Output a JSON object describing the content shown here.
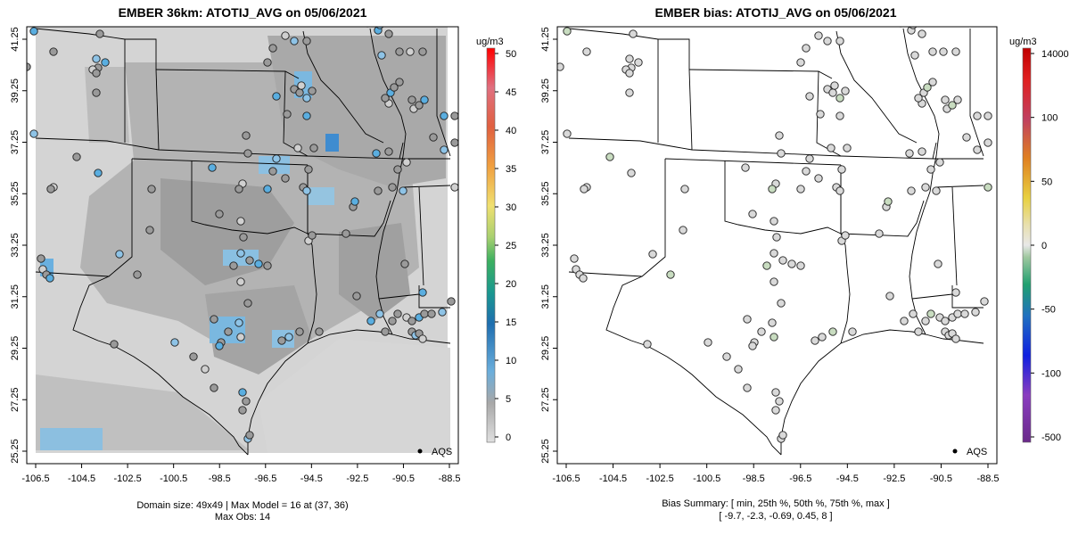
{
  "left_panel": {
    "title": "EMBER 36km: ATOTIJ_AVG on 05/06/2021",
    "colorbar_unit": "ug/m3",
    "colorbar_ticks": [
      "50",
      "45",
      "40",
      "35",
      "30",
      "25",
      "20",
      "15",
      "10",
      "5",
      "0"
    ],
    "legend_label": "AQS",
    "caption_line1": "Domain size: 49x49 | Max Model = 16 at (37, 36)",
    "caption_line2": "Max Obs: 14"
  },
  "right_panel": {
    "title": "EMBER bias: ATOTIJ_AVG on 05/06/2021",
    "colorbar_unit": "ug/m3",
    "colorbar_ticks": [
      "14000",
      "100",
      "50",
      "0",
      "-50",
      "-100",
      "-500"
    ],
    "legend_label": "AQS",
    "caption_line1": "Bias Summary: [ min, 25th %, 50th %, 75th %, max ]",
    "caption_line2": "[ -9.7,   -2.3,   -0.69,   0.45,   8 ]"
  },
  "axes": {
    "x_ticks": [
      "-106.5",
      "-104.5",
      "-102.5",
      "-100.5",
      "-98.5",
      "-96.5",
      "-94.5",
      "-92.5",
      "-90.5",
      "-88.5"
    ],
    "y_ticks": [
      "41.25",
      "39.25",
      "37.25",
      "35.25",
      "33.25",
      "31.25",
      "29.25",
      "27.25",
      "25.25"
    ]
  },
  "colors": {
    "map_gray_light": "#d3d3d3",
    "map_gray_mid": "#b5b5b5",
    "map_gray_dark": "#9a9a9a",
    "map_blue": "#5aaee0",
    "marker_neutral": "#d9d9d9",
    "marker_green": "#c8dcc0",
    "border": "#000000"
  }
}
